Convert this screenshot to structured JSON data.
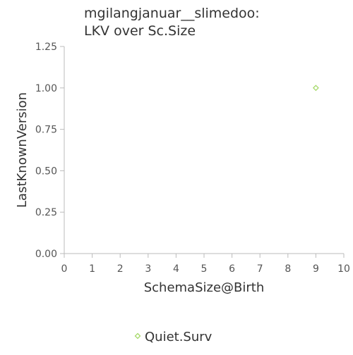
{
  "chart_data": {
    "type": "scatter",
    "title_lines": [
      "mgilangjanuar__slimedoo:",
      "LKV over Sc.Size"
    ],
    "xlabel": "SchemaSize@Birth",
    "ylabel": "LastKnownVersion",
    "xlim": [
      0,
      10
    ],
    "ylim": [
      0,
      1.25
    ],
    "x_ticks": [
      0,
      1,
      2,
      3,
      4,
      5,
      6,
      7,
      8,
      9,
      10
    ],
    "y_ticks": [
      0,
      0.25,
      0.5,
      0.75,
      1.0,
      1.25
    ],
    "y_tick_labels": [
      "0.00",
      "0.25",
      "0.50",
      "0.75",
      "1.00",
      "1.25"
    ],
    "grid": false,
    "legend_position": "bottom",
    "series": [
      {
        "name": "Quiet.Surv",
        "marker": "diamond",
        "color": "#a6d96a",
        "points": [
          {
            "x": 9,
            "y": 1.0
          }
        ]
      }
    ]
  }
}
